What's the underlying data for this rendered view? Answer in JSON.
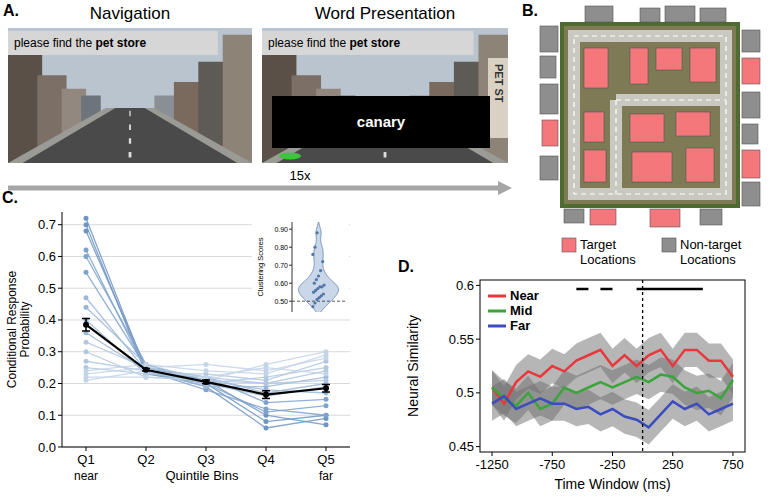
{
  "panel_a": {
    "label": "A.",
    "titles": [
      "Navigation",
      "Word Presentation"
    ],
    "prompt": "please find the ",
    "target": "pet store",
    "word": "canary",
    "sign": "PET ST",
    "repeat": "15x"
  },
  "panel_b": {
    "label": "B.",
    "legend": [
      {
        "name": "Target Locations",
        "color": "#f4777b"
      },
      {
        "name": "Non-target Locations",
        "color": "#8e8e8e"
      }
    ]
  },
  "chart_data": [
    {
      "type": "line",
      "panel_label": "C.",
      "categories": [
        "Q1",
        "Q2",
        "Q3",
        "Q4",
        "Q5"
      ],
      "category_notes": [
        "near",
        null,
        null,
        null,
        "far"
      ],
      "xlabel": "Quintile Bins",
      "ylabel": "Conditional Response Probability",
      "ylim": [
        0,
        0.74
      ],
      "yticks": [
        {
          "value": 0,
          "label": "0.0"
        },
        0.1,
        0.2,
        0.3,
        0.4,
        0.5,
        0.6,
        0.7
      ],
      "grid": true,
      "marker": "circle",
      "series": [
        {
          "color": "#6d95c2",
          "values": [
            0.72,
            0.24,
            0.19,
            0.06,
            0.09
          ]
        },
        {
          "color": "#6d95c2",
          "values": [
            0.7,
            0.23,
            0.2,
            0.08,
            0.1
          ]
        },
        {
          "color": "#6d95c2",
          "values": [
            0.68,
            0.25,
            0.21,
            0.1,
            0.07
          ]
        },
        {
          "color": "#7ea2cb",
          "values": [
            0.62,
            0.24,
            0.18,
            0.12,
            0.1
          ]
        },
        {
          "color": "#7ea2cb",
          "values": [
            0.6,
            0.26,
            0.2,
            0.11,
            0.13
          ]
        },
        {
          "color": "#7ea2cb",
          "values": [
            0.55,
            0.25,
            0.22,
            0.14,
            0.15
          ]
        },
        {
          "color": "#9cb7d6",
          "values": [
            0.47,
            0.24,
            0.2,
            0.16,
            0.19
          ]
        },
        {
          "color": "#9cb7d6",
          "values": [
            0.44,
            0.26,
            0.21,
            0.18,
            0.17
          ]
        },
        {
          "color": "#9cb7d6",
          "values": [
            0.4,
            0.23,
            0.22,
            0.17,
            0.2
          ]
        },
        {
          "color": "#9cb7d6",
          "values": [
            0.36,
            0.24,
            0.19,
            0.19,
            0.22
          ]
        },
        {
          "color": "#b3c8e0",
          "values": [
            0.33,
            0.25,
            0.22,
            0.2,
            0.21
          ]
        },
        {
          "color": "#b3c8e0",
          "values": [
            0.3,
            0.22,
            0.21,
            0.2,
            0.24
          ]
        },
        {
          "color": "#b3c8e0",
          "values": [
            0.27,
            0.24,
            0.2,
            0.22,
            0.25
          ]
        },
        {
          "color": "#b3c8e0",
          "values": [
            0.25,
            0.23,
            0.23,
            0.21,
            0.27
          ]
        },
        {
          "color": "#c3d4e7",
          "values": [
            0.24,
            0.26,
            0.24,
            0.23,
            0.29
          ]
        },
        {
          "color": "#c3d4e7",
          "values": [
            0.23,
            0.25,
            0.26,
            0.24,
            0.28
          ]
        },
        {
          "color": "#c3d4e7",
          "values": [
            0.22,
            0.22,
            0.21,
            0.26,
            0.3
          ]
        },
        {
          "color": "#c3d4e7",
          "values": [
            0.21,
            0.24,
            0.22,
            0.25,
            0.23
          ]
        },
        {
          "color": "#000000",
          "values": [
            0.385,
            0.243,
            0.205,
            0.165,
            0.185
          ],
          "errors": [
            0.02,
            0.004,
            0.006,
            0.012,
            0.012
          ]
        }
      ]
    },
    {
      "type": "violin",
      "ylabel": "Clustering Scores",
      "ylim": [
        0.44,
        0.94
      ],
      "yticks": [
        {
          "value": 0.5,
          "label": "0.50"
        },
        {
          "value": 0.6,
          "label": "0.60"
        },
        {
          "value": 0.7,
          "label": "0.70"
        },
        {
          "value": 0.8,
          "label": "0.80"
        },
        {
          "value": 0.9,
          "label": "0.90"
        }
      ],
      "color": "#9cb7d6",
      "reference_line": 0.5,
      "values": [
        0.47,
        0.49,
        0.51,
        0.52,
        0.53,
        0.54,
        0.55,
        0.56,
        0.57,
        0.58,
        0.58,
        0.59,
        0.6,
        0.62,
        0.64,
        0.67,
        0.72,
        0.76,
        0.8,
        0.88
      ]
    },
    {
      "type": "line",
      "panel_label": "D.",
      "xlabel": "Time Window (ms)",
      "ylabel": "Neural Similarity",
      "xlim": [
        -1350,
        850
      ],
      "xticks": [
        -1250,
        -750,
        -250,
        250,
        750
      ],
      "ylim": [
        0.445,
        0.605
      ],
      "yticks": [
        0.45,
        0.5,
        0.55,
        0.6
      ],
      "grid": false,
      "legend": "upper left",
      "vline": 0,
      "significance": [
        [
          -550,
          -450
        ],
        [
          -350,
          -250
        ],
        [
          -50,
          500
        ]
      ],
      "x": [
        -1250,
        -1150,
        -1050,
        -950,
        -850,
        -750,
        -650,
        -550,
        -450,
        -350,
        -250,
        -150,
        -50,
        50,
        150,
        250,
        350,
        450,
        550,
        650,
        750
      ],
      "series": [
        {
          "name": "Near",
          "color": "#e8383d",
          "values": [
            0.505,
            0.49,
            0.51,
            0.52,
            0.515,
            0.525,
            0.52,
            0.53,
            0.535,
            0.54,
            0.525,
            0.535,
            0.525,
            0.535,
            0.54,
            0.525,
            0.54,
            0.54,
            0.53,
            0.53,
            0.515
          ],
          "errors": [
            0.016,
            0.016,
            0.016,
            0.016,
            0.016,
            0.016,
            0.016,
            0.016,
            0.016,
            0.016,
            0.016,
            0.016,
            0.016,
            0.016,
            0.016,
            0.016,
            0.016,
            0.016,
            0.016,
            0.016,
            0.016
          ]
        },
        {
          "name": "Mid",
          "color": "#3aa53a",
          "values": [
            0.505,
            0.495,
            0.488,
            0.5,
            0.485,
            0.49,
            0.505,
            0.5,
            0.505,
            0.51,
            0.505,
            0.51,
            0.515,
            0.51,
            0.517,
            0.515,
            0.505,
            0.5,
            0.502,
            0.495,
            0.512
          ],
          "errors": [
            0.016,
            0.016,
            0.016,
            0.016,
            0.016,
            0.016,
            0.016,
            0.016,
            0.016,
            0.016,
            0.016,
            0.016,
            0.016,
            0.016,
            0.016,
            0.016,
            0.016,
            0.016,
            0.016,
            0.016,
            0.016
          ]
        },
        {
          "name": "Far",
          "color": "#3b4cc0",
          "values": [
            0.49,
            0.497,
            0.485,
            0.49,
            0.495,
            0.49,
            0.49,
            0.485,
            0.487,
            0.48,
            0.485,
            0.478,
            0.475,
            0.468,
            0.48,
            0.492,
            0.485,
            0.49,
            0.48,
            0.485,
            0.49
          ],
          "errors": [
            0.016,
            0.016,
            0.016,
            0.016,
            0.016,
            0.016,
            0.016,
            0.016,
            0.016,
            0.016,
            0.016,
            0.016,
            0.016,
            0.016,
            0.016,
            0.016,
            0.016,
            0.016,
            0.016,
            0.016,
            0.016
          ]
        }
      ]
    }
  ]
}
